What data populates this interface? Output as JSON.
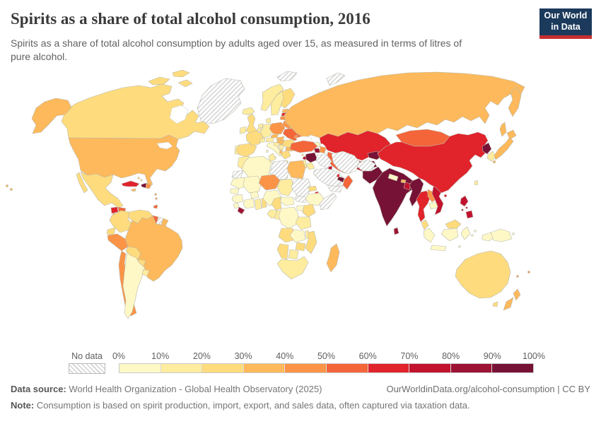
{
  "header": {
    "title": "Spirits as a share of total alcohol consumption, 2016",
    "subtitle": "Spirits as a share of total alcohol consumption by adults aged over 15, as measured in terms of litres of pure alcohol.",
    "logo": {
      "line1": "Our World",
      "line2": "in Data",
      "navy": "#1b3a5c",
      "red": "#c62f31"
    }
  },
  "legend": {
    "no_data_label": "No data",
    "ticks": [
      "0%",
      "10%",
      "20%",
      "30%",
      "40%",
      "50%",
      "60%",
      "70%",
      "80%",
      "90%",
      "100%"
    ]
  },
  "footer": {
    "datasource_label": "Data source:",
    "datasource": " World Health Organization - Global Health Observatory (2025)",
    "link": "OurWorldinData.org/alcohol-consumption | CC BY",
    "note_label": "Note:",
    "note": " Consumption is based on spirit production, import, export, and sales data, often captured via taxation data."
  },
  "chart_data": {
    "type": "choropleth-map",
    "title": "Spirits as a share of total alcohol consumption, 2016",
    "unit": "% of total alcohol consumption",
    "bin_labels": [
      "0-10%",
      "10-20%",
      "20-30%",
      "30-40%",
      "40-50%",
      "50-60%",
      "60-70%",
      "70-80%",
      "80-90%",
      "90-100%"
    ],
    "palette": [
      "#FEF8C6",
      "#FEEC9F",
      "#FEDC7E",
      "#FDB95B",
      "#FB9447",
      "#F4653A",
      "#E1232B",
      "#C2122E",
      "#9C1334",
      "#761235"
    ],
    "no_data_style": "gray diagonal hatch",
    "countries": {
      "Greenland": -1,
      "Svalbard": -1,
      "Novaya Zemlya": -1,
      "Canada": 2,
      "United States": 3,
      "Mexico": 2,
      "Guatemala": 6,
      "Honduras": 5,
      "El Salvador": 4,
      "Nicaragua": 6,
      "Costa Rica": 4,
      "Panama": 4,
      "Cuba": 6,
      "Jamaica": 3,
      "Haiti": 9,
      "Dominican Republic": 4,
      "Bahamas": 2,
      "Trinidad and Tobago": 5,
      "Lesser Antilles": 4,
      "Colombia": 2,
      "Venezuela": 2,
      "Guyana": 5,
      "Suriname": -1,
      "French Guiana": 3,
      "Ecuador": 2,
      "Peru": 4,
      "Brazil": 3,
      "Bolivia": 2,
      "Paraguay": 2,
      "Chile": 4,
      "Argentina": 0,
      "Uruguay": 1,
      "Iceland": 1,
      "Norway": 1,
      "Sweden": 1,
      "Finland": 2,
      "Denmark": 1,
      "United Kingdom": 2,
      "Ireland": 1,
      "France": 2,
      "Spain": 2,
      "Portugal": 1,
      "Italy": 0,
      "Germany": 1,
      "Netherlands": 1,
      "Belgium": 1,
      "Switzerland": 1,
      "Austria": 1,
      "Poland": 4,
      "Czechia": 3,
      "Slovakia": 3,
      "Hungary": 3,
      "Romania": 2,
      "Bulgaria": 3,
      "Greece": 2,
      "Serbia": 1,
      "Croatia": 1,
      "Albania": 3,
      "Estonia": 3,
      "Latvia": 6,
      "Lithuania": 4,
      "Belarus": 4,
      "Ukraine": 5,
      "Moldova": 4,
      "Russia": 3,
      "Turkey": 5,
      "Cyprus": 2,
      "Georgia": 0,
      "Armenia": 8,
      "Azerbaijan": 4,
      "Syria": 9,
      "Lebanon": 7,
      "Israel": 1,
      "Jordan": 1,
      "Iraq": -1,
      "Saudi Arabia": -1,
      "Yemen": -1,
      "Oman": 5,
      "United Arab Emirates": 9,
      "Kuwait": 7,
      "Qatar": 6,
      "Iran": -1,
      "Afghanistan": -1,
      "Kazakhstan": 6,
      "Uzbekistan": 7,
      "Turkmenistan": 5,
      "Kyrgyzstan": 9,
      "Tajikistan": 9,
      "Mongolia": 5,
      "China": 6,
      "North Korea": 9,
      "South Korea": 1,
      "Japan": 3,
      "Taiwan": 1,
      "Pakistan": 9,
      "India": 9,
      "Nepal": 0,
      "Bhutan": 3,
      "Bangladesh": 7,
      "Sri Lanka": 8,
      "Myanmar": 9,
      "Thailand": 6,
      "Laos": 4,
      "Cambodia": 0,
      "Vietnam": 7,
      "Philippines": 7,
      "Malaysia": 2,
      "Indonesia": 0,
      "Papua New Guinea": 0,
      "Australia": 2,
      "New Zealand": 3,
      "Fiji": 4,
      "New Caledonia": 4,
      "Morocco": 1,
      "Western Sahara": -1,
      "Algeria": 0,
      "Tunisia": 1,
      "Libya": -1,
      "Egypt": 3,
      "Mauritania": 0,
      "Senegal": 0,
      "Guinea": 0,
      "Sierra Leone": 0,
      "Liberia": 8,
      "Cote d'Ivoire": 0,
      "Ghana": 1,
      "Togo/Benin": 2,
      "Mali": 0,
      "Burkina Faso": 0,
      "Niger": 4,
      "Nigeria": 0,
      "Chad": 1,
      "Sudan": -1,
      "South Sudan": -1,
      "Eritrea": 2,
      "Djibouti": 6,
      "Ethiopia": 0,
      "Somalia": -1,
      "Central African Republic": 0,
      "Cameroon": 2,
      "Gabon": 1,
      "Congo": 1,
      "Uganda": 0,
      "Kenya": 2,
      "Democratic Republic of Congo": 0,
      "Tanzania": 1,
      "Angola": 2,
      "Zambia": 0,
      "Malawi": 1,
      "Mozambique": 2,
      "Zimbabwe": 2,
      "Botswana": 1,
      "Namibia": 2,
      "South Africa": 1,
      "Madagascar": 3
    }
  }
}
